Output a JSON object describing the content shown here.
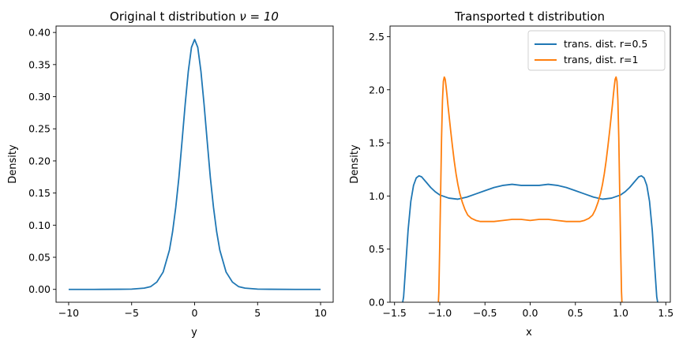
{
  "chart_data": [
    {
      "type": "line",
      "title": "Original t distribution",
      "title_math": "ν = 10",
      "xlabel": "y",
      "ylabel": "Density",
      "xlim": [
        -11,
        11
      ],
      "ylim": [
        -0.02,
        0.41
      ],
      "xticks": [
        -10,
        -5,
        0,
        5,
        10
      ],
      "xtick_labels": [
        "−10",
        "−5",
        "0",
        "5",
        "10"
      ],
      "yticks": [
        0.0,
        0.05,
        0.1,
        0.15,
        0.2,
        0.25,
        0.3,
        0.35,
        0.4
      ],
      "ytick_labels": [
        "0.00",
        "0.05",
        "0.10",
        "0.15",
        "0.20",
        "0.25",
        "0.30",
        "0.35",
        "0.40"
      ],
      "grid": false,
      "series": [
        {
          "color": "#1f77b4",
          "x": [
            -10,
            -8,
            -6,
            -5,
            -4,
            -3.5,
            -3,
            -2.5,
            -2,
            -1.75,
            -1.5,
            -1.25,
            -1,
            -0.75,
            -0.5,
            -0.25,
            0,
            0.25,
            0.5,
            0.75,
            1,
            1.25,
            1.5,
            1.75,
            2,
            2.5,
            3,
            3.5,
            4,
            5,
            6,
            8,
            10
          ],
          "y": [
            0.0,
            0.0,
            0.0002,
            0.0004,
            0.002,
            0.0042,
            0.0114,
            0.0269,
            0.0611,
            0.0897,
            0.1274,
            0.1738,
            0.2304,
            0.288,
            0.3397,
            0.3768,
            0.3891,
            0.3768,
            0.3397,
            0.288,
            0.2304,
            0.1738,
            0.1274,
            0.0897,
            0.0611,
            0.0269,
            0.0114,
            0.0042,
            0.002,
            0.0004,
            0.0002,
            0.0,
            0.0
          ]
        }
      ]
    },
    {
      "type": "line",
      "title": "Transported t distribution",
      "xlabel": "x",
      "ylabel": "Density",
      "xlim": [
        -1.55,
        1.55
      ],
      "ylim": [
        0,
        2.6
      ],
      "xticks": [
        -1.5,
        -1.0,
        -0.5,
        0.0,
        0.5,
        1.0,
        1.5
      ],
      "xtick_labels": [
        "−1.5",
        "−1.0",
        "−0.5",
        "0.0",
        "0.5",
        "1.0",
        "1.5"
      ],
      "yticks": [
        0.0,
        0.5,
        1.0,
        1.5,
        2.0,
        2.5
      ],
      "ytick_labels": [
        "0.0",
        "0.5",
        "1.0",
        "1.5",
        "2.0",
        "2.5"
      ],
      "grid": false,
      "legend": "top-right",
      "series": [
        {
          "name": "trans. dist. r=0.5",
          "color": "#1f77b4",
          "x": [
            -1.42,
            -1.4,
            -1.38,
            -1.35,
            -1.32,
            -1.29,
            -1.26,
            -1.23,
            -1.2,
            -1.15,
            -1.1,
            -1.05,
            -1.0,
            -0.9,
            -0.8,
            -0.7,
            -0.6,
            -0.5,
            -0.4,
            -0.3,
            -0.2,
            -0.1,
            0.0,
            0.1,
            0.2,
            0.3,
            0.4,
            0.5,
            0.6,
            0.7,
            0.8,
            0.9,
            1.0,
            1.05,
            1.1,
            1.15,
            1.2,
            1.23,
            1.26,
            1.29,
            1.32,
            1.35,
            1.38,
            1.4,
            1.42
          ],
          "y": [
            -0.05,
            0.05,
            0.3,
            0.68,
            0.95,
            1.1,
            1.17,
            1.19,
            1.18,
            1.13,
            1.08,
            1.04,
            1.01,
            0.98,
            0.97,
            0.99,
            1.02,
            1.05,
            1.08,
            1.1,
            1.11,
            1.1,
            1.1,
            1.1,
            1.11,
            1.1,
            1.08,
            1.05,
            1.02,
            0.99,
            0.97,
            0.98,
            1.01,
            1.04,
            1.08,
            1.13,
            1.18,
            1.19,
            1.17,
            1.1,
            0.95,
            0.68,
            0.3,
            0.05,
            -0.05
          ]
        },
        {
          "name": "trans, dist. r=1",
          "color": "#ff7f0e",
          "x": [
            -1.02,
            -1.01,
            -1.0,
            -0.99,
            -0.98,
            -0.97,
            -0.96,
            -0.95,
            -0.94,
            -0.93,
            -0.92,
            -0.91,
            -0.9,
            -0.88,
            -0.86,
            -0.84,
            -0.82,
            -0.8,
            -0.78,
            -0.75,
            -0.72,
            -0.69,
            -0.65,
            -0.6,
            -0.55,
            -0.5,
            -0.4,
            -0.3,
            -0.2,
            -0.1,
            0.0,
            0.1,
            0.2,
            0.3,
            0.4,
            0.5,
            0.55,
            0.6,
            0.65,
            0.69,
            0.72,
            0.75,
            0.78,
            0.8,
            0.82,
            0.84,
            0.86,
            0.88,
            0.9,
            0.91,
            0.92,
            0.93,
            0.94,
            0.95,
            0.96,
            0.97,
            0.98,
            0.99,
            1.0,
            1.01,
            1.02
          ],
          "y": [
            -0.1,
            0.1,
            0.55,
            1.05,
            1.55,
            1.9,
            2.08,
            2.12,
            2.1,
            2.03,
            1.95,
            1.86,
            1.78,
            1.62,
            1.47,
            1.33,
            1.21,
            1.11,
            1.03,
            0.94,
            0.87,
            0.82,
            0.79,
            0.77,
            0.76,
            0.76,
            0.76,
            0.77,
            0.78,
            0.78,
            0.77,
            0.78,
            0.78,
            0.77,
            0.76,
            0.76,
            0.76,
            0.77,
            0.79,
            0.82,
            0.87,
            0.94,
            1.03,
            1.11,
            1.21,
            1.33,
            1.47,
            1.62,
            1.78,
            1.86,
            1.95,
            2.03,
            2.1,
            2.12,
            2.08,
            1.9,
            1.55,
            1.05,
            0.55,
            0.1,
            -0.1
          ]
        }
      ]
    }
  ]
}
